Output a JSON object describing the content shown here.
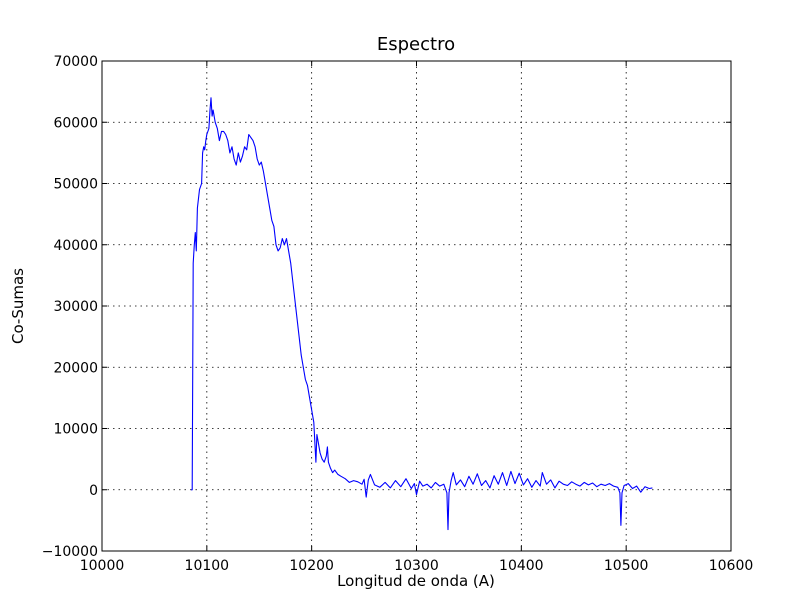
{
  "chart_data": {
    "type": "line",
    "title": "Espectro",
    "xlabel": "Longitud de onda (A)",
    "ylabel": "Co-Sumas",
    "xlim": [
      10000,
      10600
    ],
    "ylim": [
      -10000,
      70000
    ],
    "xticks": [
      10000,
      10100,
      10200,
      10300,
      10400,
      10500,
      10600
    ],
    "yticks": [
      -10000,
      0,
      10000,
      20000,
      30000,
      40000,
      50000,
      60000,
      70000
    ],
    "xtick_labels": [
      "10000",
      "10100",
      "10200",
      "10300",
      "10400",
      "10500",
      "10600"
    ],
    "ytick_labels": [
      "−10000",
      "0",
      "10000",
      "20000",
      "30000",
      "40000",
      "50000",
      "60000",
      "70000"
    ],
    "grid": true,
    "legend": "none",
    "series": [
      {
        "color": "#0000ff",
        "points": [
          [
            10085,
            0
          ],
          [
            10086,
            0
          ],
          [
            10087,
            37000
          ],
          [
            10088,
            40000
          ],
          [
            10089,
            42000
          ],
          [
            10090,
            39000
          ],
          [
            10091,
            46000
          ],
          [
            10093,
            49000
          ],
          [
            10095,
            50000
          ],
          [
            10096,
            55000
          ],
          [
            10097,
            56000
          ],
          [
            10098,
            55500
          ],
          [
            10099,
            57000
          ],
          [
            10100,
            58000
          ],
          [
            10102,
            59000
          ],
          [
            10103,
            62000
          ],
          [
            10104,
            64000
          ],
          [
            10105,
            61000
          ],
          [
            10106,
            62000
          ],
          [
            10108,
            60000
          ],
          [
            10110,
            59000
          ],
          [
            10112,
            57000
          ],
          [
            10114,
            58500
          ],
          [
            10116,
            58500
          ],
          [
            10118,
            58000
          ],
          [
            10120,
            57000
          ],
          [
            10122,
            55000
          ],
          [
            10124,
            56000
          ],
          [
            10126,
            54000
          ],
          [
            10128,
            53000
          ],
          [
            10130,
            55000
          ],
          [
            10132,
            53500
          ],
          [
            10134,
            54500
          ],
          [
            10136,
            56000
          ],
          [
            10138,
            55500
          ],
          [
            10140,
            58000
          ],
          [
            10142,
            57500
          ],
          [
            10144,
            57000
          ],
          [
            10146,
            56000
          ],
          [
            10148,
            54000
          ],
          [
            10150,
            53000
          ],
          [
            10152,
            53500
          ],
          [
            10154,
            52000
          ],
          [
            10156,
            50000
          ],
          [
            10158,
            48000
          ],
          [
            10160,
            46000
          ],
          [
            10162,
            44000
          ],
          [
            10164,
            43000
          ],
          [
            10166,
            40000
          ],
          [
            10168,
            39000
          ],
          [
            10170,
            39500
          ],
          [
            10172,
            41000
          ],
          [
            10174,
            40000
          ],
          [
            10176,
            41000
          ],
          [
            10178,
            39000
          ],
          [
            10180,
            37000
          ],
          [
            10182,
            34000
          ],
          [
            10184,
            31000
          ],
          [
            10186,
            28000
          ],
          [
            10188,
            25000
          ],
          [
            10190,
            22000
          ],
          [
            10192,
            20000
          ],
          [
            10194,
            18000
          ],
          [
            10196,
            17000
          ],
          [
            10198,
            15000
          ],
          [
            10200,
            13000
          ],
          [
            10202,
            11000
          ],
          [
            10204,
            4500
          ],
          [
            10205,
            9000
          ],
          [
            10206,
            8000
          ],
          [
            10208,
            6000
          ],
          [
            10210,
            5000
          ],
          [
            10212,
            4500
          ],
          [
            10214,
            5500
          ],
          [
            10215,
            7000
          ],
          [
            10216,
            4500
          ],
          [
            10218,
            3500
          ],
          [
            10220,
            2800
          ],
          [
            10222,
            3200
          ],
          [
            10225,
            2500
          ],
          [
            10228,
            2200
          ],
          [
            10232,
            1800
          ],
          [
            10236,
            1200
          ],
          [
            10240,
            1500
          ],
          [
            10244,
            1300
          ],
          [
            10248,
            900
          ],
          [
            10250,
            1700
          ],
          [
            10252,
            -1200
          ],
          [
            10254,
            1600
          ],
          [
            10256,
            2500
          ],
          [
            10260,
            800
          ],
          [
            10265,
            400
          ],
          [
            10270,
            1200
          ],
          [
            10275,
            300
          ],
          [
            10280,
            1500
          ],
          [
            10285,
            500
          ],
          [
            10290,
            1800
          ],
          [
            10295,
            200
          ],
          [
            10298,
            1000
          ],
          [
            10300,
            -800
          ],
          [
            10303,
            1400
          ],
          [
            10306,
            600
          ],
          [
            10310,
            900
          ],
          [
            10314,
            300
          ],
          [
            10318,
            1200
          ],
          [
            10322,
            600
          ],
          [
            10326,
            900
          ],
          [
            10329,
            -500
          ],
          [
            10330,
            -6500
          ],
          [
            10331,
            -500
          ],
          [
            10333,
            1500
          ],
          [
            10335,
            2800
          ],
          [
            10338,
            800
          ],
          [
            10342,
            1600
          ],
          [
            10346,
            500
          ],
          [
            10350,
            2200
          ],
          [
            10354,
            900
          ],
          [
            10358,
            2600
          ],
          [
            10362,
            700
          ],
          [
            10366,
            1500
          ],
          [
            10370,
            300
          ],
          [
            10374,
            2300
          ],
          [
            10378,
            900
          ],
          [
            10382,
            2800
          ],
          [
            10386,
            700
          ],
          [
            10390,
            3000
          ],
          [
            10394,
            1000
          ],
          [
            10398,
            2700
          ],
          [
            10402,
            800
          ],
          [
            10406,
            1800
          ],
          [
            10410,
            400
          ],
          [
            10414,
            1500
          ],
          [
            10418,
            600
          ],
          [
            10420,
            2800
          ],
          [
            10424,
            900
          ],
          [
            10428,
            1600
          ],
          [
            10432,
            300
          ],
          [
            10436,
            1400
          ],
          [
            10440,
            900
          ],
          [
            10444,
            700
          ],
          [
            10448,
            1300
          ],
          [
            10452,
            900
          ],
          [
            10456,
            600
          ],
          [
            10460,
            1200
          ],
          [
            10464,
            800
          ],
          [
            10468,
            1100
          ],
          [
            10472,
            500
          ],
          [
            10476,
            900
          ],
          [
            10480,
            700
          ],
          [
            10484,
            1000
          ],
          [
            10488,
            600
          ],
          [
            10492,
            400
          ],
          [
            10494,
            -500
          ],
          [
            10495,
            -5800
          ],
          [
            10496,
            -500
          ],
          [
            10498,
            700
          ],
          [
            10502,
            1000
          ],
          [
            10506,
            200
          ],
          [
            10510,
            600
          ],
          [
            10514,
            -400
          ],
          [
            10518,
            500
          ],
          [
            10522,
            200
          ],
          [
            10525,
            300
          ]
        ]
      }
    ]
  }
}
